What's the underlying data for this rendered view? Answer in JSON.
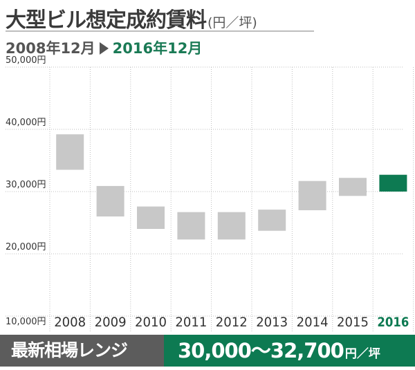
{
  "header": {
    "title": "大型ビル想定成約賃料",
    "unit": "(円／坪)",
    "period_from": "2008年12月",
    "period_to": "2016年12月"
  },
  "chart_data": {
    "type": "bar",
    "subtype": "floating-range",
    "categories": [
      "2008",
      "2009",
      "2010",
      "2011",
      "2012",
      "2013",
      "2014",
      "2015",
      "2016"
    ],
    "ranges": [
      [
        33500,
        39200
      ],
      [
        26000,
        30900
      ],
      [
        24000,
        27600
      ],
      [
        22300,
        26700
      ],
      [
        22300,
        26700
      ],
      [
        23700,
        27100
      ],
      [
        27000,
        31700
      ],
      [
        29300,
        32200
      ],
      [
        30000,
        32700
      ]
    ],
    "yticks": [
      "10,000円",
      "20,000円",
      "30,000円",
      "40,000円",
      "50,000円"
    ],
    "ylim": [
      10000,
      50000
    ],
    "grid": true,
    "colors": {
      "default": "#c8c8c8",
      "highlight": "#0d7a52",
      "highlight_label": "#0d7a52",
      "axis_label": "#333333"
    },
    "highlight_index": 8
  },
  "footer": {
    "label": "最新相場レンジ",
    "range_value": "30,000〜32,700",
    "unit": "円／坪"
  }
}
